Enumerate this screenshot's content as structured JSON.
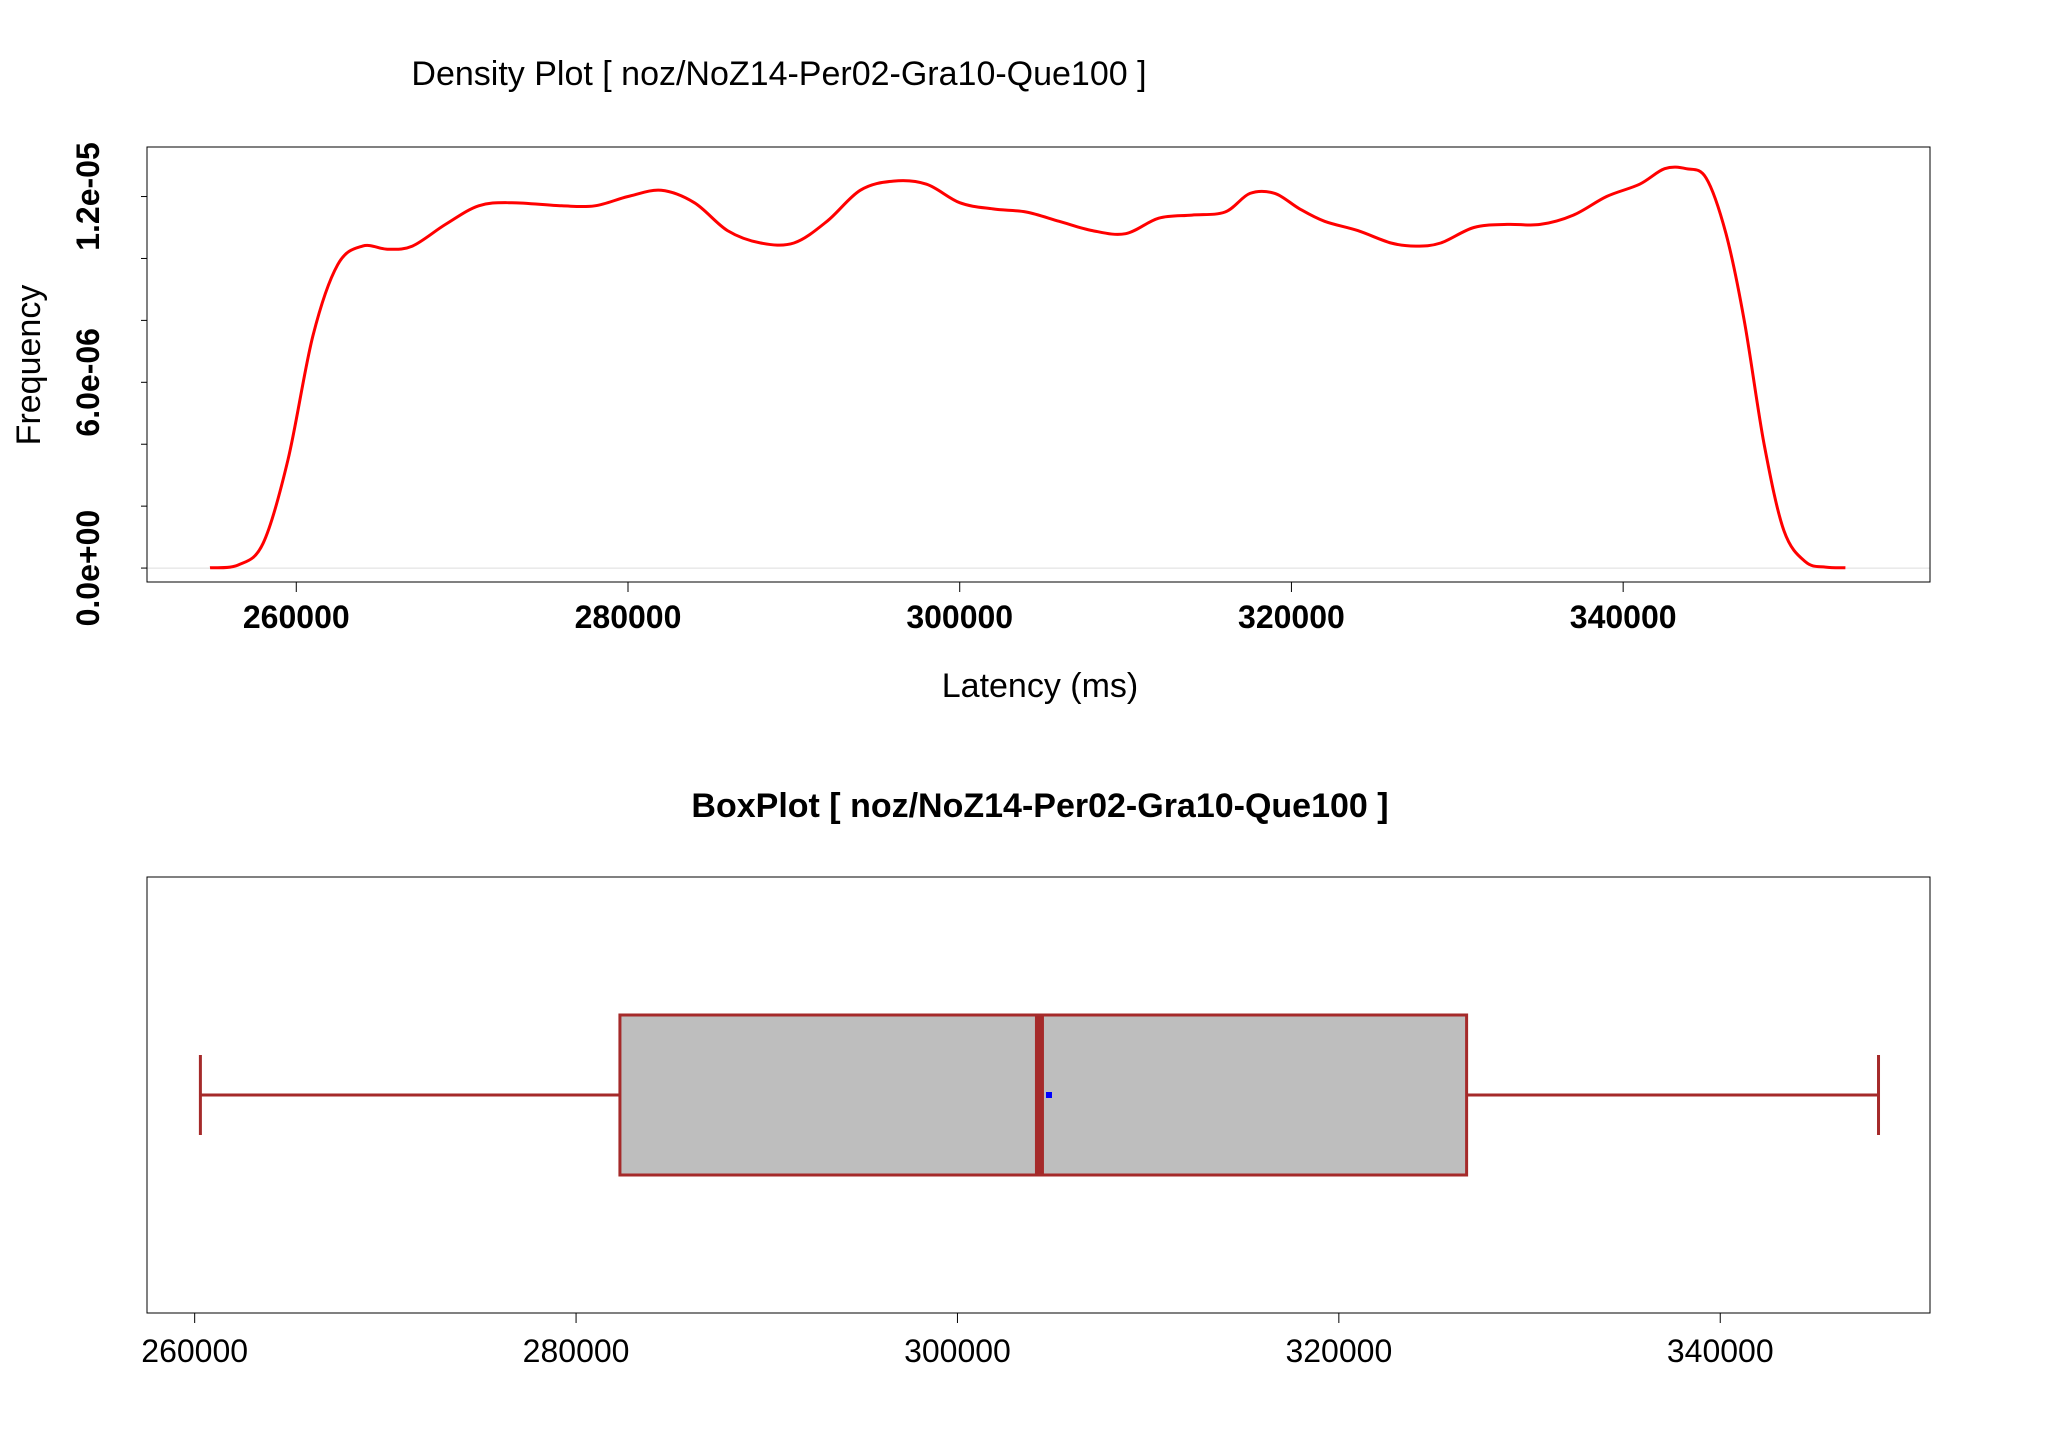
{
  "chart_data": [
    {
      "type": "line",
      "title": "Density Plot [ noz/NoZ14-Per02-Gra10-Que100 ]",
      "xlabel": "Latency (ms)",
      "ylabel": "Frequency",
      "xlim": [
        251000,
        358500
      ],
      "ylim": [
        -4.5e-07,
        1.36e-05
      ],
      "x_ticks": [
        260000,
        280000,
        300000,
        320000,
        340000
      ],
      "x_tick_labels": [
        "260000",
        "280000",
        "300000",
        "320000",
        "340000"
      ],
      "y_ticks": [
        0,
        2e-06,
        4e-06,
        6e-06,
        8e-06,
        1e-05,
        1.2e-05
      ],
      "y_tick_labels": [
        "0.0e+00",
        "",
        "",
        "6.0e-06",
        "",
        "",
        "1.2e-05"
      ],
      "grid": false,
      "legend": "none",
      "colors": {
        "line": "#ff0000",
        "baseline": "#dddddd"
      },
      "series": [
        {
          "x": [
            254800,
            256500,
            258000,
            259500,
            261000,
            262500,
            264000,
            265500,
            267000,
            269000,
            271000,
            273000,
            276000,
            278000,
            280000,
            282000,
            284000,
            286000,
            288000,
            290000,
            292000,
            294000,
            296000,
            298000,
            300000,
            302000,
            304000,
            306000,
            308000,
            310000,
            312000,
            314000,
            316000,
            317500,
            319000,
            320500,
            322000,
            324000,
            326000,
            327500,
            329000,
            331000,
            333000,
            335000,
            337000,
            339000,
            341000,
            342500,
            343800,
            345000,
            346200,
            347300,
            348500,
            349700,
            351000,
            352200,
            353400
          ],
          "y": [
            1e-08,
            1e-07,
            8e-07,
            3.5e-06,
            7.5e-06,
            9.8e-06,
            1.04e-05,
            1.03e-05,
            1.04e-05,
            1.11e-05,
            1.17e-05,
            1.18e-05,
            1.17e-05,
            1.17e-05,
            1.2e-05,
            1.22e-05,
            1.18e-05,
            1.09e-05,
            1.05e-05,
            1.05e-05,
            1.12e-05,
            1.22e-05,
            1.25e-05,
            1.24e-05,
            1.18e-05,
            1.16e-05,
            1.15e-05,
            1.12e-05,
            1.09e-05,
            1.08e-05,
            1.13e-05,
            1.14e-05,
            1.15e-05,
            1.21e-05,
            1.21e-05,
            1.16e-05,
            1.12e-05,
            1.09e-05,
            1.05e-05,
            1.04e-05,
            1.05e-05,
            1.1e-05,
            1.11e-05,
            1.11e-05,
            1.14e-05,
            1.2e-05,
            1.24e-05,
            1.29e-05,
            1.29e-05,
            1.26e-05,
            1.08e-05,
            8e-06,
            4e-06,
            1.2e-06,
            2e-07,
            3e-08,
            1e-08
          ]
        }
      ]
    },
    {
      "type": "box",
      "title": "BoxPlot [ noz/NoZ14-Per02-Gra10-Que100 ]",
      "orientation": "horizontal",
      "xlim": [
        257500,
        351000
      ],
      "x_ticks": [
        260000,
        280000,
        300000,
        320000,
        340000
      ],
      "x_tick_labels": [
        "260000",
        "280000",
        "300000",
        "320000",
        "340000"
      ],
      "grid": false,
      "legend": "none",
      "colors": {
        "box_fill": "#bebebe",
        "box_border": "#a52a2a",
        "median": "#a52a2a",
        "mean": "#0000ff"
      },
      "stats": {
        "min": 260300,
        "q1": 282300,
        "median": 304300,
        "q3": 326700,
        "max": 348300,
        "mean": 304800
      }
    }
  ]
}
